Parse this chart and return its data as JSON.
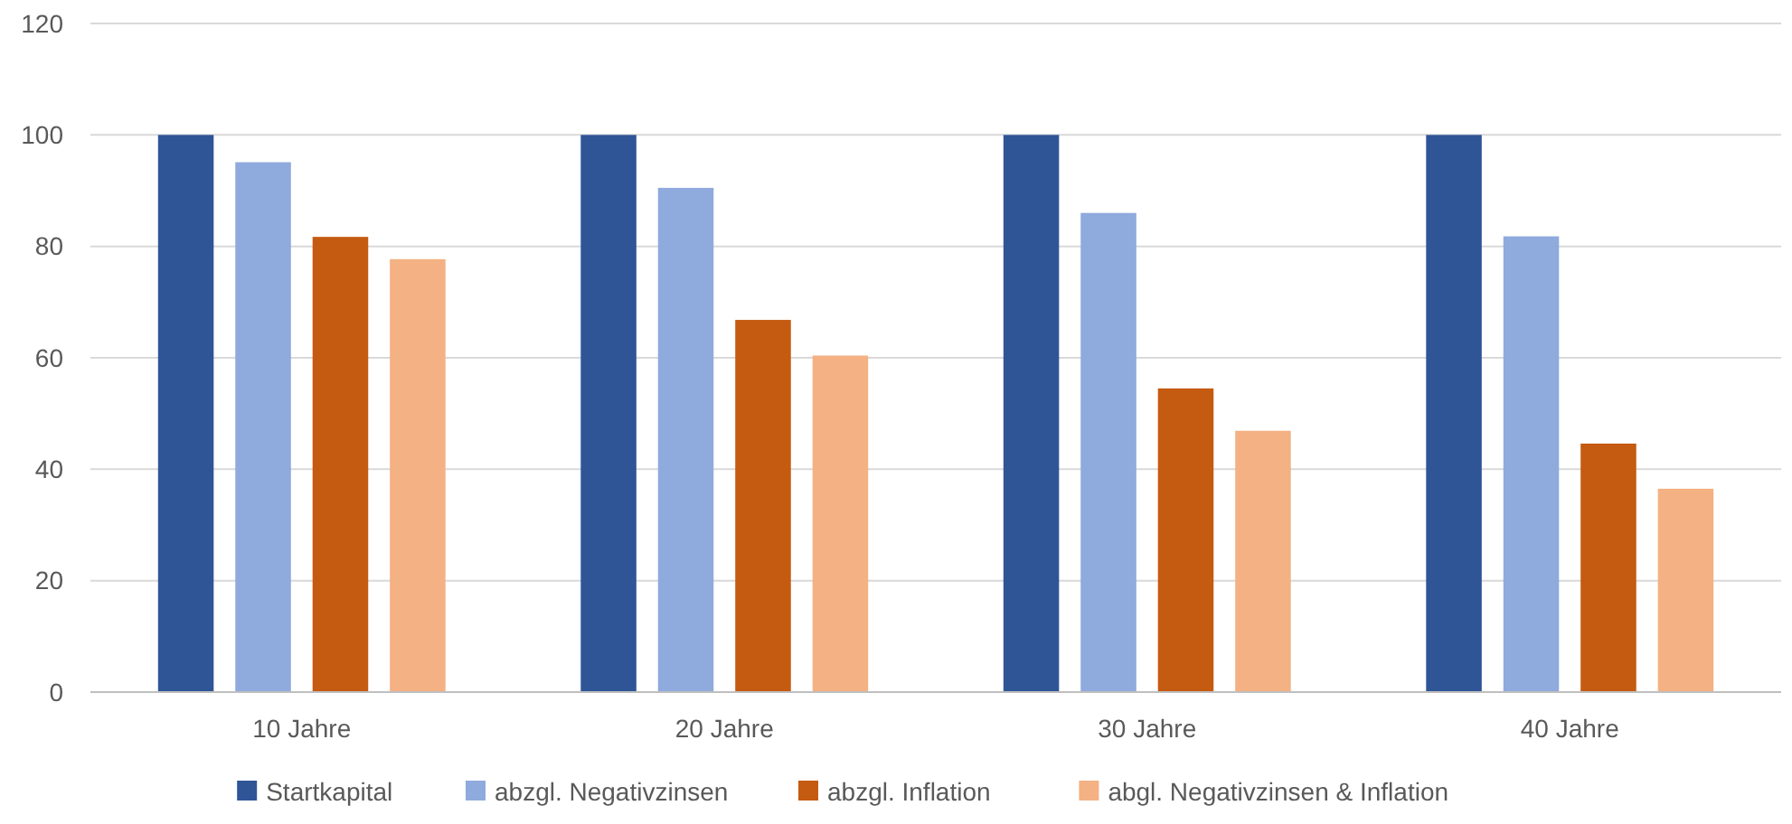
{
  "chart_data": {
    "type": "bar",
    "categories": [
      "10 Jahre",
      "20 Jahre",
      "30 Jahre",
      "40 Jahre"
    ],
    "series": [
      {
        "name": "Startkapital",
        "color": "#2f5597",
        "values": [
          100,
          100,
          100,
          100
        ]
      },
      {
        "name": "abzgl. Negativzinsen",
        "color": "#8faadc",
        "values": [
          95.1,
          90.5,
          86.0,
          81.8
        ]
      },
      {
        "name": "abzgl. Inflation",
        "color": "#c55a11",
        "values": [
          81.7,
          66.8,
          54.5,
          44.6
        ]
      },
      {
        "name": "abgl. Negativzinsen & Inflation",
        "color": "#f4b183",
        "values": [
          77.7,
          60.4,
          46.9,
          36.5
        ]
      }
    ],
    "ylim": [
      0,
      120
    ],
    "yticks": [
      0,
      20,
      40,
      60,
      80,
      100,
      120
    ],
    "grid": "y",
    "legend": "bottom"
  }
}
